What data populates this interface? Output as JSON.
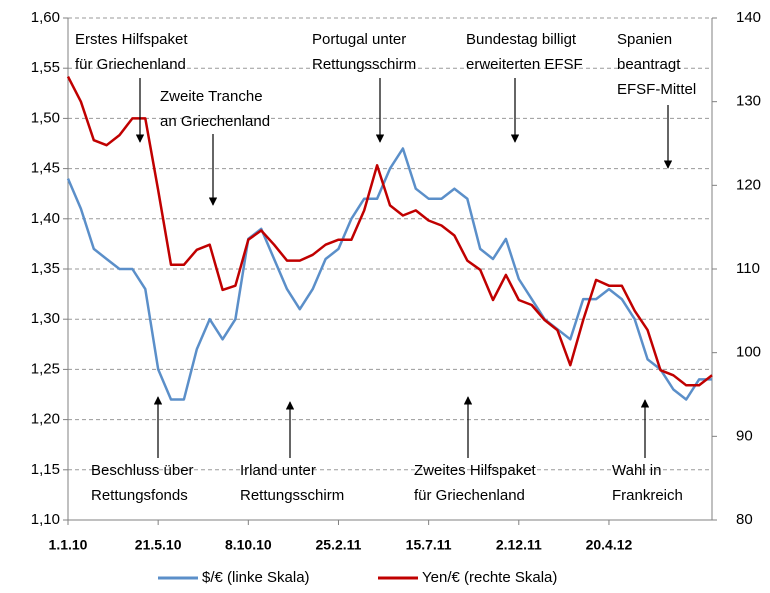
{
  "chart_data": {
    "type": "line",
    "x": [
      "1.1.10",
      "21.1.10",
      "10.2.10",
      "2.3.10",
      "22.3.10",
      "11.4.10",
      "1.5.10",
      "21.5.10",
      "10.6.10",
      "30.6.10",
      "20.7.10",
      "9.8.10",
      "29.8.10",
      "18.9.10",
      "8.10.10",
      "28.10.10",
      "17.11.10",
      "7.12.10",
      "27.12.10",
      "16.1.11",
      "5.2.11",
      "25.2.11",
      "17.3.11",
      "6.4.11",
      "26.4.11",
      "16.5.11",
      "5.6.11",
      "25.6.11",
      "15.7.11",
      "4.8.11",
      "24.8.11",
      "13.9.11",
      "3.10.11",
      "23.10.11",
      "12.11.11",
      "2.12.11",
      "22.12.11",
      "11.1.12",
      "31.1.12",
      "20.2.12",
      "11.3.12",
      "31.3.12",
      "20.4.12",
      "10.5.12",
      "30.5.12",
      "19.6.12",
      "9.7.12",
      "29.7.12",
      "18.8.12",
      "7.9.12",
      "27.9.12"
    ],
    "xticks": [
      "1.1.10",
      "21.5.10",
      "8.10.10",
      "25.2.11",
      "15.7.11",
      "2.12.11",
      "20.4.12"
    ],
    "series": [
      {
        "name": "$/€ (linke Skala)",
        "color": "#5b8fc9",
        "values": [
          1.44,
          1.41,
          1.37,
          1.36,
          1.35,
          1.35,
          1.33,
          1.25,
          1.22,
          1.22,
          1.27,
          1.3,
          1.28,
          1.3,
          1.38,
          1.39,
          1.36,
          1.33,
          1.31,
          1.33,
          1.36,
          1.37,
          1.4,
          1.42,
          1.42,
          1.45,
          1.47,
          1.43,
          1.42,
          1.42,
          1.43,
          1.42,
          1.37,
          1.36,
          1.38,
          1.34,
          1.32,
          1.3,
          1.29,
          1.28,
          1.32,
          1.32,
          1.33,
          1.32,
          1.3,
          1.26,
          1.25,
          1.23,
          1.22,
          1.24,
          1.24
        ]
      },
      {
        "name": "Yen/€ (rechte Skala)",
        "color": "#c00000",
        "axis": "y2",
        "values": [
          133,
          130,
          125.4,
          124.8,
          126,
          128,
          128,
          119.4,
          110.5,
          110.5,
          112.3,
          112.9,
          107.5,
          108,
          113.5,
          114.6,
          112.9,
          111,
          111,
          111.7,
          112.9,
          113.5,
          113.5,
          117,
          122.4,
          117.6,
          116.4,
          117,
          115.8,
          115.2,
          114,
          111,
          109.9,
          106.3,
          109.3,
          106.3,
          105.7,
          103.9,
          102.7,
          98.5,
          103.9,
          108.7,
          108,
          108,
          105,
          102.7,
          97.9,
          97.3,
          96.1,
          96.1,
          97.3
        ]
      }
    ],
    "ylim": [
      1.1,
      1.6
    ],
    "yticks": [
      {
        "value": 1.1,
        "label": "1,10"
      },
      {
        "value": 1.15,
        "label": "1,15"
      },
      {
        "value": 1.2,
        "label": "1,20"
      },
      {
        "value": 1.25,
        "label": "1,25"
      },
      {
        "value": 1.3,
        "label": "1,30"
      },
      {
        "value": 1.35,
        "label": "1,35"
      },
      {
        "value": 1.4,
        "label": "1,40"
      },
      {
        "value": 1.45,
        "label": "1,45"
      },
      {
        "value": 1.5,
        "label": "1,50"
      },
      {
        "value": 1.55,
        "label": "1,55"
      },
      {
        "value": 1.6,
        "label": "1,60"
      }
    ],
    "y2lim": [
      80,
      140
    ],
    "y2ticks": [
      80,
      90,
      100,
      110,
      120,
      130,
      140
    ],
    "grid": true,
    "legend": "bottom",
    "annotations": [
      [
        "Erstes Hilfspaket",
        "für Griechenland"
      ],
      [
        "Zweite Tranche",
        "an Griechenland"
      ],
      [
        "Portugal unter",
        "Rettungsschirm"
      ],
      [
        "Bundestag billigt",
        "erweiterten EFSF"
      ],
      [
        "Spanien",
        "beantragt",
        "EFSF-Mittel"
      ],
      [
        "Beschluss über",
        "Rettungsfonds"
      ],
      [
        "Irland unter",
        "Rettungsschirm"
      ],
      [
        "Zweites Hilfspaket",
        "für Griechenland"
      ],
      [
        "Wahl in",
        "Frankreich"
      ]
    ]
  }
}
